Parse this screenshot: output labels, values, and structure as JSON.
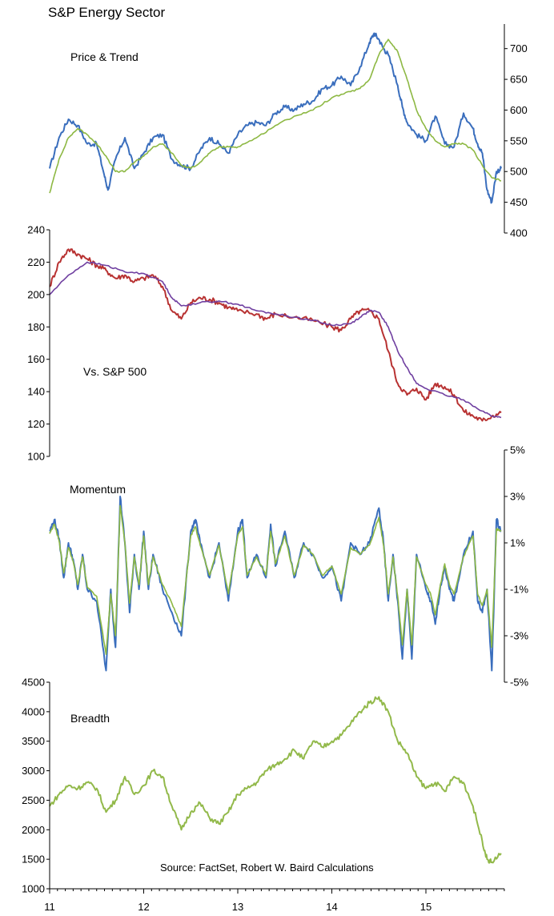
{
  "title": "S&P Energy Sector",
  "source": "Source: FactSet, Robert W. Baird Calculations",
  "colors": {
    "blue": "#3a6ebd",
    "green": "#8db843",
    "red": "#b83232",
    "purple": "#6f3fa0",
    "breadth": "#92b94a",
    "axis": "#000000"
  },
  "chart_data": [
    {
      "type": "line",
      "panel": "price",
      "label": "Price & Trend",
      "x_ticks": [
        "11",
        "12",
        "13",
        "14",
        "15"
      ],
      "y_ticks": [
        "400",
        "450",
        "500",
        "550",
        "600",
        "650",
        "700"
      ],
      "ylim": [
        400,
        740
      ],
      "y_axis_side": "right",
      "series": [
        {
          "color": "#3a6ebd",
          "x": [
            2011.0,
            2011.1,
            2011.2,
            2011.3,
            2011.4,
            2011.5,
            2011.58,
            2011.62,
            2011.7,
            2011.8,
            2011.9,
            2012.0,
            2012.1,
            2012.2,
            2012.3,
            2012.4,
            2012.5,
            2012.6,
            2012.7,
            2012.8,
            2012.9,
            2013.0,
            2013.1,
            2013.2,
            2013.3,
            2013.4,
            2013.5,
            2013.6,
            2013.7,
            2013.8,
            2013.9,
            2014.0,
            2014.1,
            2014.2,
            2014.3,
            2014.4,
            2014.45,
            2014.5,
            2014.55,
            2014.6,
            2014.7,
            2014.75,
            2014.8,
            2014.9,
            2015.0,
            2015.1,
            2015.2,
            2015.3,
            2015.4,
            2015.5,
            2015.55,
            2015.6,
            2015.65,
            2015.7,
            2015.75,
            2015.8
          ],
          "values": [
            505,
            555,
            585,
            575,
            545,
            545,
            495,
            470,
            520,
            555,
            505,
            530,
            555,
            560,
            520,
            510,
            505,
            535,
            555,
            545,
            530,
            560,
            575,
            580,
            575,
            595,
            605,
            600,
            610,
            615,
            635,
            640,
            655,
            640,
            670,
            710,
            725,
            715,
            700,
            690,
            640,
            605,
            580,
            560,
            550,
            590,
            545,
            540,
            595,
            570,
            545,
            530,
            470,
            450,
            500,
            505
          ]
        },
        {
          "color": "#8db843",
          "x": [
            2011.0,
            2011.1,
            2011.2,
            2011.3,
            2011.4,
            2011.5,
            2011.6,
            2011.7,
            2011.8,
            2011.9,
            2012.0,
            2012.1,
            2012.2,
            2012.3,
            2012.4,
            2012.5,
            2012.6,
            2012.7,
            2012.8,
            2012.9,
            2013.0,
            2013.2,
            2013.4,
            2013.6,
            2013.8,
            2014.0,
            2014.2,
            2014.3,
            2014.4,
            2014.5,
            2014.6,
            2014.7,
            2014.8,
            2014.9,
            2015.0,
            2015.1,
            2015.2,
            2015.3,
            2015.4,
            2015.5,
            2015.6,
            2015.7,
            2015.8
          ],
          "values": [
            465,
            520,
            555,
            570,
            560,
            545,
            525,
            500,
            500,
            515,
            525,
            540,
            545,
            530,
            510,
            505,
            515,
            530,
            540,
            540,
            540,
            555,
            575,
            590,
            600,
            620,
            630,
            635,
            650,
            690,
            715,
            695,
            650,
            600,
            570,
            550,
            540,
            545,
            545,
            535,
            510,
            490,
            485
          ]
        }
      ]
    },
    {
      "type": "line",
      "panel": "relative",
      "label": "Vs. S&P 500",
      "y_ticks": [
        "100",
        "120",
        "140",
        "160",
        "180",
        "200",
        "220",
        "240"
      ],
      "ylim": [
        100,
        240
      ],
      "y_axis_side": "left",
      "series": [
        {
          "color": "#b83232",
          "x": [
            2011.0,
            2011.1,
            2011.2,
            2011.3,
            2011.4,
            2011.5,
            2011.6,
            2011.7,
            2011.8,
            2011.9,
            2012.0,
            2012.1,
            2012.2,
            2012.3,
            2012.4,
            2012.5,
            2012.6,
            2012.7,
            2012.8,
            2012.9,
            2013.0,
            2013.2,
            2013.3,
            2013.4,
            2013.6,
            2013.8,
            2014.0,
            2014.1,
            2014.2,
            2014.3,
            2014.4,
            2014.5,
            2014.6,
            2014.7,
            2014.8,
            2014.9,
            2015.0,
            2015.1,
            2015.2,
            2015.3,
            2015.4,
            2015.5,
            2015.6,
            2015.7,
            2015.8
          ],
          "values": [
            205,
            220,
            228,
            225,
            222,
            218,
            215,
            210,
            212,
            208,
            210,
            212,
            205,
            190,
            185,
            195,
            198,
            197,
            195,
            192,
            190,
            188,
            185,
            188,
            186,
            184,
            180,
            178,
            185,
            190,
            190,
            185,
            165,
            145,
            138,
            142,
            135,
            145,
            143,
            138,
            128,
            125,
            122,
            125,
            127
          ]
        },
        {
          "color": "#6f3fa0",
          "x": [
            2011.0,
            2011.2,
            2011.4,
            2011.6,
            2011.8,
            2012.0,
            2012.2,
            2012.3,
            2012.4,
            2012.6,
            2012.8,
            2013.0,
            2013.2,
            2013.4,
            2013.6,
            2013.8,
            2014.0,
            2014.2,
            2014.3,
            2014.4,
            2014.5,
            2014.6,
            2014.7,
            2014.8,
            2014.9,
            2015.0,
            2015.2,
            2015.4,
            2015.6,
            2015.7,
            2015.8
          ],
          "values": [
            200,
            212,
            220,
            218,
            214,
            213,
            208,
            198,
            193,
            195,
            196,
            194,
            190,
            188,
            186,
            184,
            181,
            182,
            186,
            190,
            189,
            180,
            165,
            155,
            145,
            142,
            138,
            135,
            128,
            125,
            124
          ]
        }
      ]
    },
    {
      "type": "line",
      "panel": "momentum",
      "label": "Momentum",
      "y_ticks": [
        "-5%",
        "-3%",
        "-1%",
        "1%",
        "3%",
        "5%"
      ],
      "ylim": [
        -5,
        5
      ],
      "y_axis_side": "right",
      "series": [
        {
          "color": "#3a6ebd",
          "x": [
            2011.0,
            2011.05,
            2011.1,
            2011.15,
            2011.2,
            2011.25,
            2011.3,
            2011.35,
            2011.4,
            2011.5,
            2011.6,
            2011.65,
            2011.7,
            2011.75,
            2011.8,
            2011.85,
            2011.9,
            2011.95,
            2012.0,
            2012.05,
            2012.1,
            2012.2,
            2012.3,
            2012.4,
            2012.5,
            2012.55,
            2012.6,
            2012.7,
            2012.8,
            2012.9,
            2013.0,
            2013.05,
            2013.1,
            2013.2,
            2013.3,
            2013.35,
            2013.4,
            2013.5,
            2013.6,
            2013.7,
            2013.8,
            2013.9,
            2014.0,
            2014.1,
            2014.2,
            2014.3,
            2014.4,
            2014.5,
            2014.55,
            2014.6,
            2014.65,
            2014.7,
            2014.75,
            2014.8,
            2014.85,
            2014.9,
            2015.0,
            2015.05,
            2015.1,
            2015.15,
            2015.2,
            2015.25,
            2015.3,
            2015.4,
            2015.5,
            2015.55,
            2015.6,
            2015.65,
            2015.7,
            2015.75,
            2015.8
          ],
          "values": [
            1.5,
            2.0,
            1.2,
            -0.5,
            1.0,
            0.3,
            -1.0,
            0.5,
            -1.0,
            -1.5,
            -4.5,
            -1.0,
            -3.5,
            3.0,
            1.0,
            -2.0,
            0.5,
            -1.0,
            1.5,
            -1.0,
            0.5,
            -1.0,
            -2.0,
            -3.0,
            1.5,
            2.0,
            1.0,
            -0.5,
            1.0,
            -1.5,
            1.5,
            2.0,
            -0.5,
            0.5,
            -0.5,
            1.8,
            0.0,
            1.5,
            -0.5,
            1.0,
            0.5,
            -0.5,
            0.0,
            -1.5,
            1.0,
            0.5,
            1.0,
            2.5,
            1.0,
            -1.5,
            0.5,
            -1.5,
            -4.0,
            -1.0,
            -4.0,
            0.5,
            -1.0,
            -1.5,
            -2.5,
            -1.0,
            0.0,
            -1.0,
            -1.5,
            0.5,
            1.5,
            -1.5,
            -2.0,
            -1.0,
            -4.5,
            2.0,
            1.5
          ]
        },
        {
          "color": "#8db843",
          "x": [
            2011.0,
            2011.05,
            2011.1,
            2011.15,
            2011.2,
            2011.25,
            2011.3,
            2011.35,
            2011.4,
            2011.5,
            2011.6,
            2011.65,
            2011.7,
            2011.75,
            2011.8,
            2011.85,
            2011.9,
            2011.95,
            2012.0,
            2012.05,
            2012.1,
            2012.2,
            2012.3,
            2012.4,
            2012.5,
            2012.55,
            2012.6,
            2012.7,
            2012.8,
            2012.9,
            2013.0,
            2013.05,
            2013.1,
            2013.2,
            2013.3,
            2013.35,
            2013.4,
            2013.5,
            2013.6,
            2013.7,
            2013.8,
            2013.9,
            2014.0,
            2014.1,
            2014.2,
            2014.3,
            2014.4,
            2014.5,
            2014.55,
            2014.6,
            2014.65,
            2014.7,
            2014.75,
            2014.8,
            2014.85,
            2014.9,
            2015.0,
            2015.05,
            2015.1,
            2015.15,
            2015.2,
            2015.25,
            2015.3,
            2015.4,
            2015.5,
            2015.55,
            2015.6,
            2015.65,
            2015.7,
            2015.75,
            2015.8
          ],
          "values": [
            1.4,
            1.8,
            1.1,
            -0.3,
            0.8,
            0.2,
            -0.8,
            0.4,
            -0.9,
            -1.3,
            -3.8,
            -1.2,
            -3.0,
            2.6,
            1.0,
            -1.6,
            0.4,
            -0.8,
            1.3,
            -0.8,
            0.4,
            -0.8,
            -1.6,
            -2.6,
            1.3,
            1.7,
            0.9,
            -0.4,
            0.9,
            -1.2,
            1.3,
            1.7,
            -0.4,
            0.4,
            -0.4,
            1.5,
            0.1,
            1.3,
            -0.4,
            0.9,
            0.5,
            -0.4,
            0.0,
            -1.2,
            0.8,
            0.5,
            0.9,
            2.1,
            0.9,
            -1.2,
            0.4,
            -1.3,
            -3.4,
            -1.0,
            -3.4,
            0.4,
            -0.8,
            -1.2,
            -2.1,
            -0.9,
            0.1,
            -0.8,
            -1.2,
            0.4,
            1.3,
            -1.2,
            -1.7,
            -1.0,
            -3.5,
            1.6,
            1.5
          ]
        }
      ]
    },
    {
      "type": "line",
      "panel": "breadth",
      "label": "Breadth",
      "y_ticks": [
        "1000",
        "1500",
        "2000",
        "2500",
        "3000",
        "3500",
        "4000",
        "4500"
      ],
      "ylim": [
        1000,
        4500
      ],
      "y_axis_side": "left",
      "series": [
        {
          "color": "#92b94a",
          "x": [
            2011.0,
            2011.1,
            2011.2,
            2011.3,
            2011.4,
            2011.5,
            2011.6,
            2011.7,
            2011.8,
            2011.9,
            2012.0,
            2012.1,
            2012.2,
            2012.3,
            2012.4,
            2012.5,
            2012.6,
            2012.7,
            2012.8,
            2012.9,
            2013.0,
            2013.1,
            2013.2,
            2013.3,
            2013.4,
            2013.5,
            2013.6,
            2013.7,
            2013.8,
            2013.9,
            2014.0,
            2014.1,
            2014.2,
            2014.3,
            2014.4,
            2014.5,
            2014.6,
            2014.7,
            2014.8,
            2014.9,
            2015.0,
            2015.1,
            2015.2,
            2015.3,
            2015.4,
            2015.5,
            2015.6,
            2015.65,
            2015.7,
            2015.8
          ],
          "values": [
            2400,
            2600,
            2750,
            2700,
            2800,
            2700,
            2300,
            2500,
            2900,
            2600,
            2750,
            3000,
            2900,
            2400,
            2000,
            2300,
            2450,
            2200,
            2100,
            2300,
            2600,
            2700,
            2800,
            3000,
            3100,
            3200,
            3350,
            3200,
            3500,
            3400,
            3500,
            3600,
            3800,
            4000,
            4150,
            4250,
            4000,
            3500,
            3300,
            2900,
            2700,
            2800,
            2650,
            2900,
            2800,
            2400,
            1800,
            1500,
            1450,
            1600
          ]
        }
      ]
    }
  ]
}
